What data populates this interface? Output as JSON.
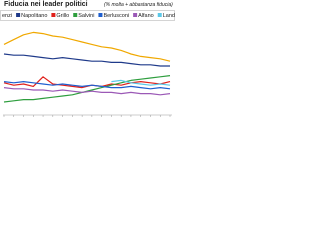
{
  "chart_data": {
    "type": "line",
    "title": "Fiducia nei leader politici",
    "subtitle": "(% molta + abbastanza fiducia)",
    "categories": [
      null,
      null,
      null,
      null,
      null,
      null,
      null,
      null,
      null,
      null,
      null,
      null,
      null,
      null,
      null,
      null,
      null,
      null
    ],
    "ylim": [
      0,
      75
    ],
    "series": [
      {
        "name": "enzi",
        "color": "#f0a800",
        "values": [
          58,
          62,
          66,
          68,
          67,
          65,
          64,
          62,
          60,
          58,
          56,
          55,
          53,
          50,
          48,
          47,
          46,
          44
        ]
      },
      {
        "name": "Napolitano",
        "color": "#1f3a8a",
        "values": [
          50,
          49,
          49,
          48,
          47,
          46,
          47,
          46,
          45,
          44,
          44,
          43,
          43,
          42,
          41,
          41,
          40,
          40
        ]
      },
      {
        "name": "Grillo",
        "color": "#e0201b",
        "values": [
          26,
          24,
          25,
          23,
          31,
          25,
          24,
          23,
          22,
          24,
          23,
          25,
          24,
          26,
          27,
          26,
          25,
          27
        ]
      },
      {
        "name": "Salvini",
        "color": "#2e9e3e",
        "values": [
          10,
          11,
          12,
          12,
          13,
          14,
          15,
          16,
          18,
          20,
          22,
          24,
          26,
          28,
          29,
          30,
          31,
          32
        ]
      },
      {
        "name": "Berlusconi",
        "color": "#1e5fcf",
        "values": [
          27,
          26,
          27,
          26,
          25,
          24,
          25,
          24,
          23,
          24,
          23,
          22,
          22,
          23,
          22,
          21,
          22,
          21
        ]
      },
      {
        "name": "Alfano",
        "color": "#9b59b6",
        "values": [
          22,
          21,
          21,
          20,
          20,
          19,
          20,
          19,
          18,
          19,
          18,
          18,
          17,
          18,
          17,
          17,
          16,
          17
        ]
      },
      {
        "name": "Landini",
        "color": "#5bc8e8",
        "values": [
          null,
          null,
          null,
          null,
          null,
          null,
          null,
          null,
          null,
          null,
          null,
          27,
          28,
          26,
          25,
          24,
          25,
          24
        ]
      }
    ]
  }
}
